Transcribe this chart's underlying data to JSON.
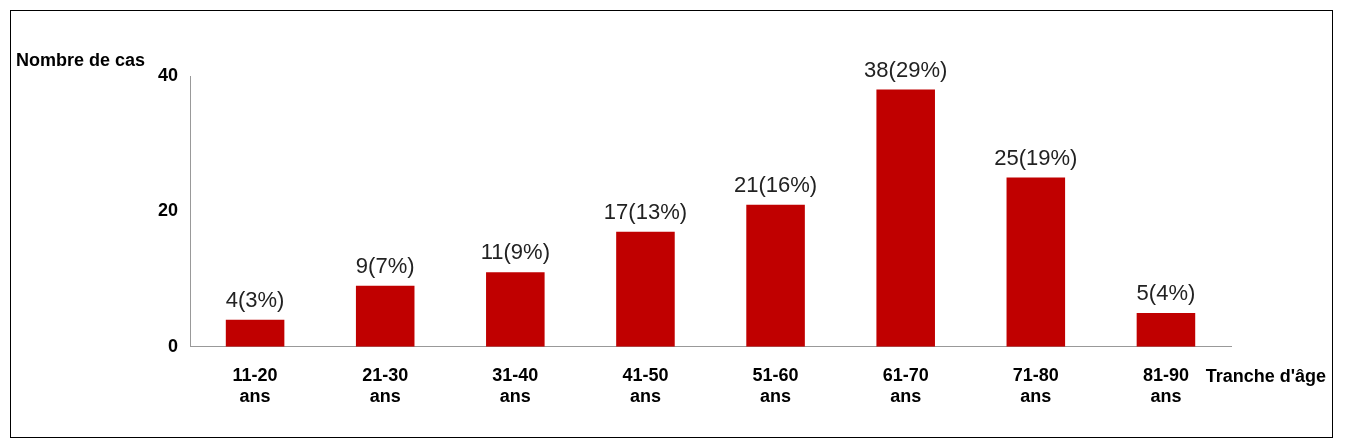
{
  "chart_data": {
    "type": "bar",
    "xlabel": "Tranche d'âge",
    "ylabel": "Nombre de cas",
    "categories": [
      "11-20 ans",
      "21-30 ans",
      "31-40 ans",
      "41-50 ans",
      "51-60 ans",
      "61-70 ans",
      "71-80 ans",
      "81-90 ans"
    ],
    "values": [
      4,
      9,
      11,
      17,
      21,
      38,
      25,
      5
    ],
    "value_labels": [
      "4(3%)",
      "9(7%)",
      "11(9%)",
      "17(13%)",
      "21(16%)",
      "38(29%)",
      "25(19%)",
      "5(4%)"
    ],
    "color": "#c00000",
    "ylim": [
      0,
      40
    ],
    "yticks": [
      0,
      20,
      40
    ],
    "grid": false,
    "legend": false
  }
}
